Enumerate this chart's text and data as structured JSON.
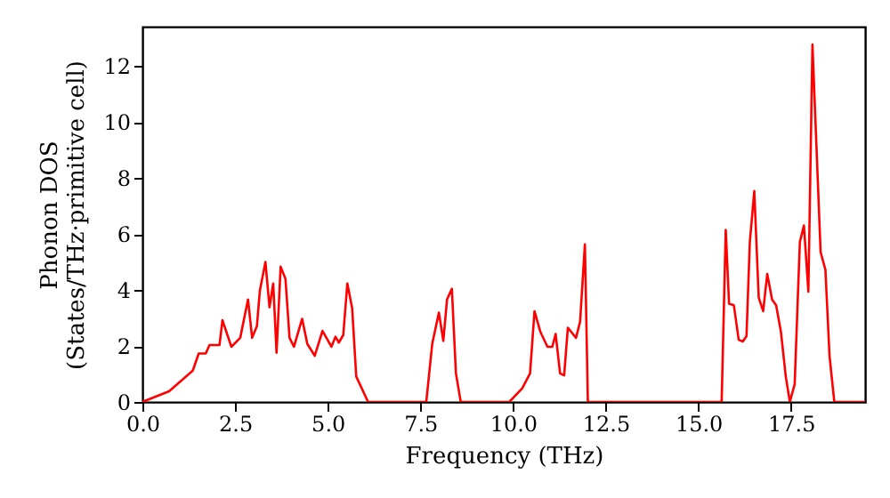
{
  "chart_data": {
    "type": "line",
    "xlabel": "Frequency (THz)",
    "ylabel": "Phonon DOS\n(States/THz·primitive cell)",
    "xlim": [
      0,
      19.5
    ],
    "ylim": [
      0,
      13.4
    ],
    "xticks": [
      {
        "value": 0,
        "label": "0.0"
      },
      {
        "value": 2.5,
        "label": "2.5"
      },
      {
        "value": 5,
        "label": "5.0"
      },
      {
        "value": 7.5,
        "label": "7.5"
      },
      {
        "value": 10,
        "label": "10.0"
      },
      {
        "value": 12.5,
        "label": "12.5"
      },
      {
        "value": 15,
        "label": "15.0"
      },
      {
        "value": 17.5,
        "label": "17.5"
      }
    ],
    "yticks": [
      0,
      2,
      4,
      6,
      8,
      10,
      12
    ],
    "grid": false,
    "line_style": "solid",
    "marker": "none",
    "series": [
      {
        "color": "#ff0000",
        "x": [
          0,
          0.72,
          1.36,
          1.52,
          1.71,
          1.81,
          2.08,
          2.16,
          2.4,
          2.64,
          2.85,
          2.96,
          3.09,
          3.17,
          3.32,
          3.43,
          3.53,
          3.62,
          3.73,
          3.86,
          3.97,
          4.09,
          4.31,
          4.45,
          4.65,
          4.86,
          5.1,
          5.21,
          5.3,
          5.42,
          5.53,
          5.66,
          5.77,
          6.09,
          7.66,
          7.82,
          8.0,
          8.12,
          8.22,
          8.35,
          8.46,
          8.59,
          9.9,
          10.25,
          10.46,
          10.58,
          10.74,
          10.93,
          11.06,
          11.15,
          11.27,
          11.38,
          11.48,
          11.7,
          11.81,
          11.94,
          12.02,
          15.63,
          15.74,
          15.83,
          15.96,
          16.09,
          16.2,
          16.3,
          16.39,
          16.51,
          16.63,
          16.75,
          16.86,
          16.99,
          17.1,
          17.23,
          17.36,
          17.47,
          17.6,
          17.74,
          17.85,
          17.97,
          18.08,
          18.3,
          18.43,
          18.54,
          18.67,
          19.49
        ],
        "values": [
          0,
          0.38,
          1.12,
          1.73,
          1.73,
          2.03,
          2.03,
          2.92,
          1.97,
          2.29,
          3.66,
          2.29,
          2.71,
          3.98,
          5.0,
          3.38,
          4.23,
          1.76,
          4.83,
          4.4,
          2.29,
          1.97,
          2.97,
          2.07,
          1.65,
          2.54,
          1.97,
          2.33,
          2.12,
          2.39,
          4.23,
          3.35,
          0.91,
          0,
          0,
          2.07,
          3.19,
          2.18,
          3.66,
          4.04,
          1.02,
          0,
          0,
          0.49,
          1.02,
          3.24,
          2.5,
          1.97,
          1.97,
          2.43,
          1.02,
          0.95,
          2.65,
          2.29,
          2.86,
          5.63,
          0,
          0,
          6.14,
          3.51,
          3.45,
          2.22,
          2.16,
          2.35,
          5.71,
          7.53,
          3.73,
          3.24,
          4.57,
          3.66,
          3.45,
          2.5,
          0.91,
          0,
          0.63,
          5.71,
          6.3,
          3.94,
          12.76,
          5.35,
          4.72,
          1.65,
          0,
          0
        ]
      }
    ]
  }
}
